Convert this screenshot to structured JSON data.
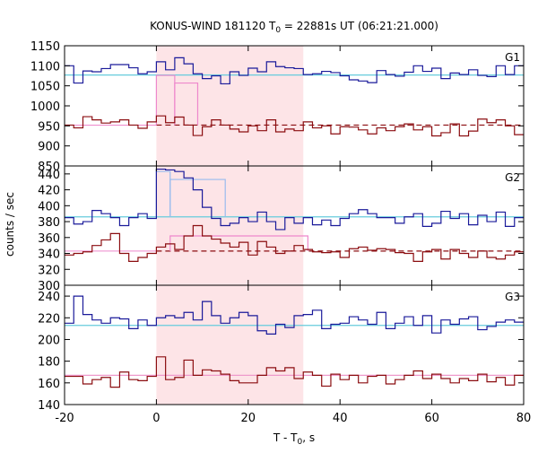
{
  "chart_data": {
    "type": "line",
    "title": "KONUS-WIND 181120 T",
    "title_sub": "0",
    "title_rest": " = 22881s UT (06:21:21.000)",
    "xlabel": "T - T",
    "xlabel_sub": "0",
    "xlabel_rest": ", s",
    "ylabel": "counts / sec",
    "xlim": [
      -20,
      80
    ],
    "x_ticks": [
      "-20",
      "0",
      "20",
      "40",
      "60",
      "80"
    ],
    "shaded_interval": [
      0,
      32
    ],
    "bin_edges": [
      -20,
      -18,
      -16,
      -14,
      -12,
      -10,
      -8,
      -6,
      -4,
      -2,
      0,
      2,
      4,
      6,
      8,
      10,
      12,
      14,
      16,
      18,
      20,
      22,
      24,
      26,
      28,
      30,
      32,
      34,
      36,
      38,
      40,
      42,
      44,
      46,
      48,
      50,
      52,
      54,
      56,
      58,
      60,
      62,
      64,
      66,
      68,
      70,
      72,
      74,
      76,
      78,
      80
    ],
    "panels": [
      {
        "name": "G1",
        "ylim": [
          850,
          1150
        ],
        "y_ticks": [
          "850",
          "900",
          "950",
          "1000",
          "1050",
          "1100",
          "1150"
        ],
        "series": [
          {
            "values": [
              1100,
              1057,
              1087,
              1085,
              1093,
              1103,
              1103,
              1095,
              1080,
              1085,
              1110,
              1090,
              1120,
              1105,
              1080,
              1068,
              1075,
              1055,
              1085,
              1076,
              1094,
              1085,
              1110,
              1098,
              1095,
              1093,
              1078,
              1080,
              1086,
              1083,
              1075,
              1065,
              1062,
              1058,
              1088,
              1078,
              1074,
              1084,
              1100,
              1086,
              1094,
              1068,
              1082,
              1078,
              1090,
              1076,
              1073,
              1100,
              1078,
              1100
            ]
          },
          {
            "values": [
              952,
              945,
              973,
              965,
              957,
              960,
              965,
              952,
              944,
              960,
              975,
              958,
              972,
              952,
              926,
              948,
              965,
              952,
              942,
              935,
              950,
              938,
              965,
              935,
              942,
              938,
              960,
              945,
              950,
              930,
              948,
              947,
              940,
              930,
              945,
              938,
              948,
              955,
              940,
              948,
              925,
              933,
              955,
              925,
              937,
              967,
              958,
              965,
              950,
              928
            ]
          }
        ],
        "background_levels": [
          1077,
          952
        ],
        "fit_steps": [
          [
            0,
            4,
            1076
          ],
          [
            4,
            9,
            1057
          ]
        ]
      },
      {
        "name": "G2",
        "ylim": [
          300,
          450
        ],
        "y_ticks": [
          "300",
          "320",
          "340",
          "360",
          "380",
          "400",
          "420",
          "440"
        ],
        "series": [
          {
            "values": [
              385,
              377,
              380,
              394,
              390,
              385,
              375,
              385,
              390,
              384,
              446,
              445,
              443,
              435,
              420,
              398,
              384,
              375,
              378,
              385,
              380,
              392,
              380,
              370,
              385,
              378,
              385,
              376,
              382,
              375,
              384,
              390,
              395,
              390,
              385,
              385,
              378,
              386,
              390,
              374,
              378,
              393,
              384,
              390,
              376,
              388,
              380,
              392,
              374,
              385
            ]
          },
          {
            "values": [
              338,
              340,
              342,
              350,
              357,
              365,
              340,
              330,
              335,
              340,
              348,
              352,
              345,
              362,
              375,
              362,
              358,
              353,
              348,
              354,
              338,
              355,
              348,
              340,
              343,
              350,
              345,
              342,
              341,
              342,
              335,
              346,
              348,
              344,
              346,
              345,
              341,
              340,
              330,
              342,
              345,
              333,
              345,
              340,
              335,
              343,
              335,
              333,
              338,
              342
            ]
          }
        ],
        "background_levels": [
          386,
          343
        ],
        "fit_steps": [
          [
            0,
            3,
            443
          ],
          [
            3,
            15,
            433
          ],
          [
            3,
            33,
            362
          ]
        ]
      },
      {
        "name": "G3",
        "ylim": [
          140,
          250
        ],
        "y_ticks": [
          "140",
          "160",
          "180",
          "200",
          "220",
          "240"
        ],
        "series": [
          {
            "values": [
              215,
              240,
              223,
              218,
              215,
              220,
              219,
              210,
              218,
              213,
              220,
              222,
              220,
              225,
              218,
              235,
              222,
              215,
              220,
              225,
              222,
              208,
              205,
              214,
              211,
              222,
              223,
              227,
              210,
              214,
              215,
              221,
              218,
              214,
              225,
              210,
              215,
              221,
              213,
              222,
              206,
              218,
              214,
              219,
              221,
              209,
              212,
              216,
              218,
              216
            ]
          },
          {
            "values": [
              166,
              166,
              159,
              163,
              165,
              156,
              170,
              163,
              162,
              166,
              184,
              163,
              165,
              181,
              167,
              172,
              171,
              168,
              162,
              160,
              160,
              167,
              174,
              171,
              174,
              164,
              170,
              167,
              157,
              168,
              163,
              167,
              160,
              166,
              167,
              159,
              163,
              167,
              171,
              164,
              168,
              164,
              160,
              164,
              162,
              168,
              161,
              165,
              158,
              167
            ]
          }
        ],
        "background_levels": [
          213,
          167
        ]
      }
    ],
    "colors": {
      "high_channel": "#1a1a9a",
      "low_channel": "#8b0d10",
      "high_background": "#66ccdd",
      "low_background": "#8b0d10",
      "fit": "#ee88cc",
      "fit_blue": "#99bbee",
      "shade": "#fde4e7",
      "fit_line_g3": "#ee99cc"
    }
  }
}
